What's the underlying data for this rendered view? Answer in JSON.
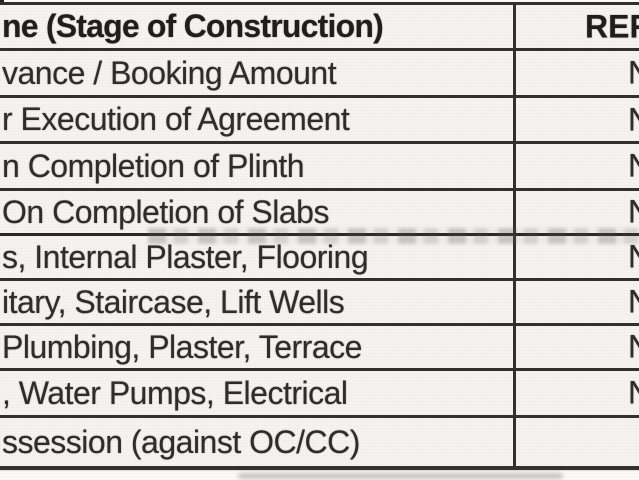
{
  "table": {
    "header": {
      "stage_label": "ne (Stage of Construction)",
      "value_label": "RER"
    },
    "rows": [
      {
        "stage": "vance / Booking Amount",
        "value": "N"
      },
      {
        "stage": "r Execution of Agreement",
        "value": "N"
      },
      {
        "stage": "n Completion of Plinth",
        "value": "N"
      },
      {
        "stage": "On Completion of Slabs",
        "value": "N"
      },
      {
        "stage": "s, Internal Plaster, Flooring",
        "value": "N"
      },
      {
        "stage": "itary, Staircase, Lift Wells",
        "value": "N"
      },
      {
        "stage": "Plumbing, Plaster, Terrace",
        "value": "N"
      },
      {
        "stage": ", Water Pumps, Electrical",
        "value": "N"
      },
      {
        "stage": "ssession (against OC/CC)",
        "value": ""
      }
    ]
  },
  "colors": {
    "border": "#33302c",
    "text": "#2e2b28",
    "header_text": "#1f1d1a",
    "cell_bg": "#f7f6f3",
    "page_bg": "#fcfbf9"
  }
}
